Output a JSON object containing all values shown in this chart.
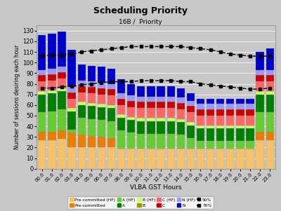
{
  "title": "Scheduling Priority",
  "subtitle": "16B /  Priority",
  "xlabel": "VLBA GST Hours",
  "ylabel": "Number of sessions desiring each hour",
  "hours": [
    "00.0",
    "01.0",
    "02.0",
    "03.0",
    "04.0",
    "05.0",
    "06.0",
    "07.0",
    "08.0",
    "09.0",
    "10.0",
    "11.0",
    "12.0",
    "13.0",
    "14.0",
    "15.0",
    "16.0",
    "17.0",
    "18.0",
    "19.0",
    "20.0",
    "21.0",
    "22.0",
    "23.0"
  ],
  "pre_committed_hf": [
    27,
    27,
    28,
    20,
    20,
    20,
    20,
    20,
    19,
    19,
    19,
    19,
    19,
    19,
    19,
    19,
    19,
    19,
    19,
    19,
    19,
    19,
    27,
    27
  ],
  "pre_committed": [
    8,
    8,
    8,
    14,
    12,
    11,
    10,
    9,
    0,
    0,
    0,
    0,
    0,
    0,
    0,
    0,
    0,
    0,
    0,
    0,
    0,
    0,
    8,
    8
  ],
  "A_hf": [
    18,
    19,
    20,
    3,
    16,
    16,
    16,
    16,
    17,
    15,
    14,
    14,
    14,
    14,
    13,
    10,
    7,
    7,
    7,
    7,
    7,
    7,
    18,
    18
  ],
  "A": [
    17,
    17,
    17,
    17,
    12,
    12,
    12,
    12,
    12,
    12,
    12,
    12,
    12,
    12,
    12,
    12,
    12,
    12,
    12,
    12,
    12,
    12,
    17,
    17
  ],
  "B_hf": [
    3,
    3,
    3,
    3,
    3,
    3,
    3,
    3,
    3,
    3,
    3,
    3,
    3,
    3,
    3,
    3,
    3,
    3,
    3,
    3,
    3,
    3,
    3,
    3
  ],
  "B": [
    0,
    0,
    0,
    0,
    0,
    0,
    0,
    0,
    0,
    0,
    0,
    0,
    0,
    0,
    0,
    0,
    0,
    0,
    0,
    0,
    0,
    0,
    0,
    0
  ],
  "C_hf": [
    9,
    9,
    9,
    9,
    9,
    9,
    9,
    9,
    9,
    9,
    9,
    9,
    9,
    9,
    9,
    9,
    9,
    9,
    9,
    9,
    9,
    9,
    9,
    9
  ],
  "C": [
    6,
    6,
    6,
    6,
    6,
    6,
    6,
    6,
    6,
    6,
    6,
    6,
    6,
    6,
    6,
    6,
    6,
    6,
    6,
    6,
    6,
    6,
    6,
    6
  ],
  "N_hf": [
    5,
    5,
    5,
    5,
    5,
    5,
    5,
    5,
    5,
    5,
    5,
    5,
    5,
    5,
    5,
    5,
    5,
    5,
    5,
    5,
    5,
    5,
    5,
    5
  ],
  "N": [
    33,
    33,
    33,
    35,
    15,
    15,
    15,
    14,
    13,
    11,
    10,
    10,
    10,
    10,
    9,
    7,
    5,
    5,
    5,
    5,
    5,
    5,
    17,
    20
  ],
  "line_50": [
    106,
    107,
    107,
    108,
    110,
    111,
    112,
    113,
    114,
    115,
    115,
    115,
    115,
    115,
    115,
    114,
    113,
    112,
    110,
    108,
    107,
    106,
    106,
    106
  ],
  "line_70": [
    76,
    76,
    77,
    78,
    79,
    80,
    81,
    82,
    82,
    82,
    83,
    83,
    83,
    83,
    82,
    82,
    80,
    79,
    78,
    77,
    76,
    75,
    75,
    76
  ],
  "colors": {
    "pre_committed_hf": "#F5C26B",
    "pre_committed": "#E87E00",
    "A_hf": "#66CC33",
    "A": "#008000",
    "B_hf": "#CCFF66",
    "B": "#999900",
    "C_hf": "#FF6666",
    "C": "#CC0000",
    "N_hf": "#9999FF",
    "N": "#0000CC",
    "line_50": "#000000",
    "line_70": "#000000"
  },
  "bg_color": "#C8C8C8",
  "plot_bg": "#C8C8C8",
  "ylim": [
    0,
    135
  ],
  "yticks": [
    0,
    10,
    20,
    30,
    40,
    50,
    60,
    70,
    80,
    90,
    100,
    110,
    120,
    130
  ],
  "legend_items": [
    {
      "label": "Pre-committed (HF)",
      "type": "patch",
      "color": "#F5C26B"
    },
    {
      "label": "Pre-committed",
      "type": "patch",
      "color": "#E87E00"
    },
    {
      "label": "A (HF)",
      "type": "patch",
      "color": "#66CC33"
    },
    {
      "label": "A",
      "type": "patch",
      "color": "#008000"
    },
    {
      "label": "B (HF)",
      "type": "patch",
      "color": "#CCFF66"
    },
    {
      "label": "B",
      "type": "patch",
      "color": "#999900"
    },
    {
      "label": "C (HF)",
      "type": "patch",
      "color": "#FF6666"
    },
    {
      "label": "C",
      "type": "patch",
      "color": "#CC0000"
    },
    {
      "label": "N (HF)",
      "type": "patch",
      "color": "#9999FF"
    },
    {
      "label": "N",
      "type": "patch",
      "color": "#0000CC"
    },
    {
      "label": "50%",
      "type": "line",
      "color": "#000000",
      "linestyle": "--"
    },
    {
      "label": "70%",
      "type": "line",
      "color": "#000000",
      "linestyle": "--"
    }
  ]
}
